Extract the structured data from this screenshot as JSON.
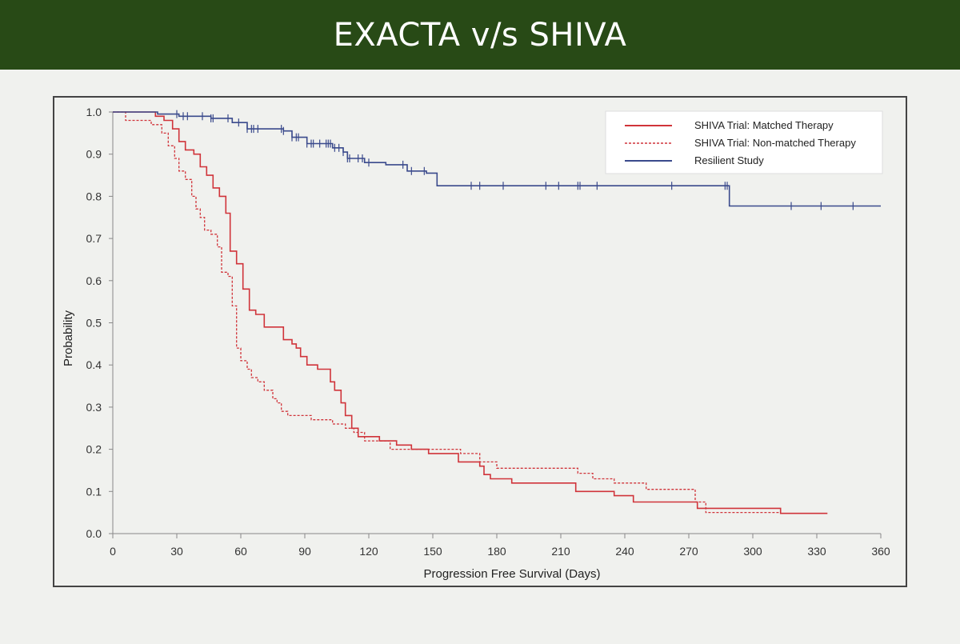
{
  "banner": {
    "title": "EXACTA v/s SHIVA"
  },
  "colors": {
    "banner_bg": "#284a16",
    "matched": "#d0343a",
    "nonmatched": "#d0343a",
    "resilient": "#3a4a8c"
  },
  "chart_data": {
    "type": "line",
    "title": "",
    "xlabel": "Progression Free Survival (Days)",
    "ylabel": "Probability",
    "xlim": [
      0,
      360
    ],
    "ylim": [
      0,
      1.0
    ],
    "xticks": [
      0,
      30,
      60,
      90,
      120,
      150,
      180,
      210,
      240,
      270,
      300,
      330,
      360
    ],
    "yticks": [
      "0.0",
      "0.1",
      "0.2",
      "0.3",
      "0.4",
      "0.5",
      "0.6",
      "0.7",
      "0.8",
      "0.9",
      "1.0"
    ],
    "grid": false,
    "legend_position": "top-right",
    "step": true,
    "series": [
      {
        "name": "SHIVA Trial: Matched Therapy",
        "style": "solid",
        "color": "#d0343a",
        "x": [
          0,
          20,
          24,
          28,
          31,
          34,
          38,
          41,
          44,
          47,
          50,
          53,
          55,
          58,
          61,
          64,
          67,
          71,
          80,
          84,
          86,
          88,
          91,
          96,
          102,
          104,
          107,
          109,
          112,
          115,
          125,
          133,
          140,
          148,
          162,
          172,
          174,
          177,
          187,
          217,
          235,
          244,
          274,
          313,
          335
        ],
        "y": [
          1.0,
          0.99,
          0.98,
          0.96,
          0.93,
          0.91,
          0.9,
          0.87,
          0.85,
          0.82,
          0.8,
          0.76,
          0.67,
          0.64,
          0.58,
          0.53,
          0.52,
          0.49,
          0.46,
          0.45,
          0.44,
          0.42,
          0.4,
          0.39,
          0.36,
          0.34,
          0.31,
          0.28,
          0.25,
          0.23,
          0.22,
          0.21,
          0.2,
          0.19,
          0.17,
          0.16,
          0.14,
          0.13,
          0.12,
          0.1,
          0.09,
          0.075,
          0.06,
          0.048,
          0.048
        ]
      },
      {
        "name": "SHIVA Trial: Non-matched Therapy",
        "style": "dashed",
        "color": "#d0343a",
        "x": [
          0,
          6,
          18,
          23,
          26,
          29,
          31,
          34,
          37,
          39,
          41,
          43,
          46,
          49,
          51,
          54,
          56,
          58,
          60,
          63,
          65,
          68,
          71,
          75,
          77,
          79,
          82,
          86,
          93,
          103,
          109,
          113,
          118,
          130,
          163,
          172,
          180,
          218,
          225,
          235,
          250,
          273,
          278,
          293,
          313
        ],
        "y": [
          1.0,
          0.98,
          0.97,
          0.95,
          0.92,
          0.89,
          0.86,
          0.84,
          0.8,
          0.77,
          0.75,
          0.72,
          0.71,
          0.68,
          0.62,
          0.61,
          0.54,
          0.44,
          0.41,
          0.39,
          0.37,
          0.36,
          0.34,
          0.32,
          0.31,
          0.29,
          0.28,
          0.28,
          0.27,
          0.26,
          0.25,
          0.24,
          0.22,
          0.2,
          0.19,
          0.17,
          0.155,
          0.143,
          0.13,
          0.12,
          0.105,
          0.075,
          0.05,
          0.05,
          0.05
        ],
        "style_note": "dashed"
      },
      {
        "name": "Resilient Study",
        "style": "solid",
        "color": "#3a4a8c",
        "x": [
          0,
          21,
          31,
          46,
          56,
          63,
          80,
          84,
          91,
          103,
          108,
          110,
          118,
          128,
          138,
          147,
          152,
          289,
          360
        ],
        "y": [
          1.0,
          0.995,
          0.99,
          0.985,
          0.975,
          0.96,
          0.955,
          0.94,
          0.925,
          0.915,
          0.905,
          0.89,
          0.88,
          0.875,
          0.86,
          0.855,
          0.825,
          0.777,
          0.777
        ],
        "censor_x": [
          30,
          33,
          35,
          42,
          46,
          47,
          54,
          59,
          63,
          65,
          66,
          68,
          79,
          80,
          84,
          86,
          87,
          91,
          93,
          94,
          97,
          100,
          101,
          102,
          104,
          106,
          108,
          110,
          111,
          115,
          117,
          120,
          136,
          140,
          146,
          168,
          172,
          183,
          203,
          209,
          218,
          219,
          227,
          262,
          287,
          288,
          318,
          332,
          347
        ]
      }
    ]
  }
}
